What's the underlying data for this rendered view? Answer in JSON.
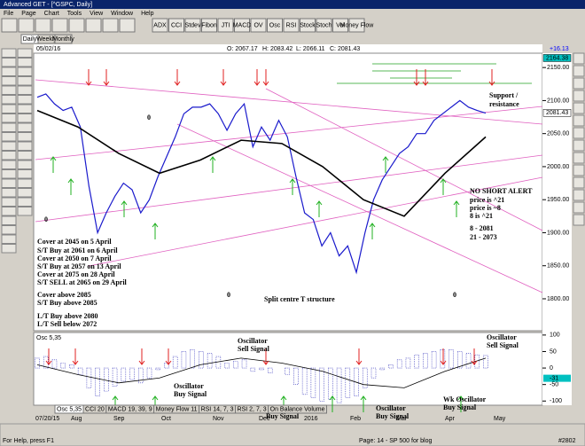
{
  "window": {
    "title": "Advanced GET - [^GSPC, Daily]"
  },
  "menu": [
    "File",
    "Page",
    "Chart",
    "Tools",
    "View",
    "Window",
    "Help"
  ],
  "toolbar": [
    "ADX",
    "CCI",
    "Stdev",
    "Fibon",
    "JTI",
    "MACD",
    "OV",
    "Osc",
    "RSI",
    "Stock",
    "Stoch",
    "Vol",
    "Money Flow"
  ],
  "tabs": [
    "Daily",
    "Weekly",
    "Monthly"
  ],
  "info": {
    "date": "05/02/16",
    "open": "O: 2067.17",
    "high": "H: 2083.42",
    "low": "L: 2066.11",
    "close": "C: 2081.43",
    "change": "+16.13"
  },
  "chart_data": [
    {
      "type": "line",
      "ylim": [
        1753,
        2169
      ],
      "yticks": [
        {
          "value": 2150,
          "label": "2150.00"
        },
        {
          "value": 2100,
          "label": "2100.00"
        },
        {
          "value": 2050,
          "label": "2050.00"
        },
        {
          "value": 2000,
          "label": "2000.00"
        },
        {
          "value": 1950,
          "label": "1950.00"
        },
        {
          "value": 1900,
          "label": "1900.00"
        },
        {
          "value": 1850,
          "label": "1850.00"
        },
        {
          "value": 1800,
          "label": "1800.00"
        }
      ],
      "markers": [
        {
          "value": 2164.38,
          "label": "2164.38"
        },
        {
          "value": 2081.43,
          "label": "2081.43"
        }
      ],
      "series": [
        {
          "color": "#1a1acc",
          "values": [
            2105,
            2110,
            2095,
            2085,
            2090,
            2060,
            1970,
            1900,
            1930,
            1955,
            1975,
            1965,
            1930,
            1950,
            1985,
            2015,
            2045,
            2080,
            2090,
            2090,
            2095,
            2080,
            2055,
            2080,
            2095,
            2030,
            2060,
            2040,
            2070,
            2045,
            1985,
            1930,
            1920,
            1880,
            1900,
            1865,
            1880,
            1840,
            1900,
            1950,
            1980,
            2000,
            2020,
            2030,
            2050,
            2050,
            2070,
            2080,
            2090,
            2100,
            2090,
            2085,
            2081
          ]
        },
        {
          "color": "#000000",
          "values": [
            2085,
            2060,
            2020,
            1990,
            2010,
            2040,
            2035,
            2000,
            1950,
            1925,
            1990,
            2045
          ]
        }
      ]
    },
    {
      "type": "bar",
      "title": "Osc 5,35",
      "ylim": [
        -110,
        105
      ],
      "yticks": [
        100,
        50,
        0,
        -50,
        -100
      ],
      "markers": [
        {
          "value": -31,
          "label": "-31"
        }
      ],
      "series": [
        {
          "color": "#3333bb",
          "values": [
            30,
            35,
            25,
            15,
            10,
            -20,
            -60,
            -85,
            -70,
            -55,
            -40,
            -35,
            -45,
            -30,
            -5,
            15,
            35,
            50,
            55,
            50,
            45,
            35,
            15,
            20,
            25,
            -10,
            -5,
            -15,
            0,
            -20,
            -50,
            -80,
            -90,
            -100,
            -95,
            -105,
            -90,
            -85,
            -60,
            -30,
            -5,
            10,
            25,
            30,
            40,
            45,
            50,
            55,
            55,
            50,
            45,
            40,
            38
          ]
        },
        {
          "color": "#000000",
          "values": [
            10,
            -20,
            -45,
            -30,
            10,
            30,
            15,
            -10,
            -50,
            -60,
            -10,
            30
          ]
        }
      ]
    }
  ],
  "notes": {
    "left": [
      "Cover at 2045 on 5 April",
      "S/T Buy at 2061 on 6 April",
      "Cover at 2050 on 7 April",
      "S/T Buy at 2057 on 13 April",
      "Cover at 2075 on 28 April",
      "S/T SELL at 2065 on 29 April",
      "Cover above 2085",
      "S/T Buy above 2085",
      "L/T Buy above 2080",
      "L/T Sell below 2072"
    ],
    "right": [
      "NO SHORT ALERT",
      "price is ^21",
      "price is ~8",
      "8 is ^21",
      "8   - 2081",
      "21 - 2073"
    ],
    "support": [
      "Support /",
      "resistance"
    ],
    "split": "Split centre T structure",
    "zero": "0"
  },
  "osc_notes": [
    [
      "Oscillator",
      "Sell Signal"
    ],
    [
      "Oscillator",
      "Sell Signal"
    ],
    [
      "Oscillator",
      "Buy Signal"
    ],
    [
      "Wk Oscillator",
      "Buy Signal"
    ],
    [
      "Oscillator",
      "Buy Signal"
    ],
    [
      "Wk Oscillator",
      "Buy Signal"
    ]
  ],
  "indicator_tabs": [
    "Osc 5,35",
    "CCI 20",
    "MACD 19, 39, 9",
    "Money Flow 11",
    "RSI 14, 7, 3",
    "RSI 2, 7, 3",
    "On Balance Volume"
  ],
  "date_axis": [
    "07/20/15",
    "Aug",
    "Sep",
    "Oct",
    "Nov",
    "Dec",
    "2016",
    "Feb",
    "Mar",
    "Apr",
    "May"
  ],
  "status": {
    "help": "For Help, press F1",
    "page": "Page: 14 - SP 500 for blog",
    "count": "#2802"
  }
}
